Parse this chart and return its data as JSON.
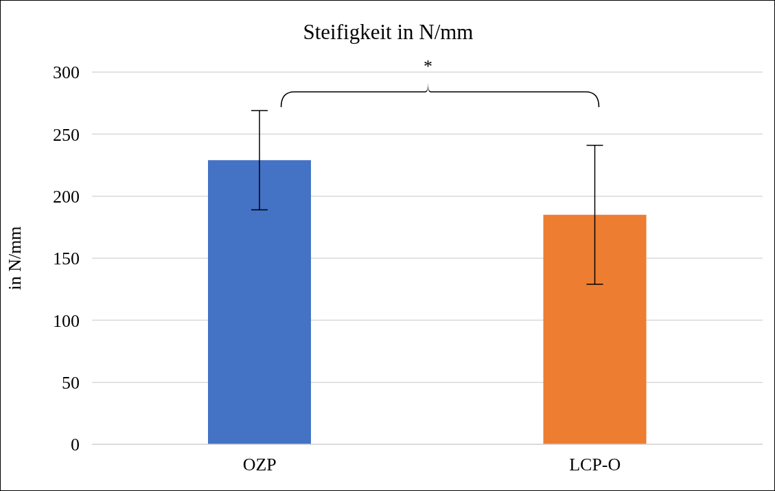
{
  "chart_data": {
    "type": "bar",
    "title": "Steifigkeit in N/mm",
    "ylabel": "in N/mm",
    "categories": [
      "OZP",
      "LCP-O"
    ],
    "values": [
      229,
      185
    ],
    "colors": [
      "#4472c4",
      "#ed7d31"
    ],
    "errors": [
      40,
      56
    ],
    "ylim": [
      0,
      300
    ],
    "yticks": [
      0,
      50,
      100,
      150,
      200,
      250,
      300
    ],
    "grid": "y",
    "annotations": [
      "*"
    ]
  }
}
